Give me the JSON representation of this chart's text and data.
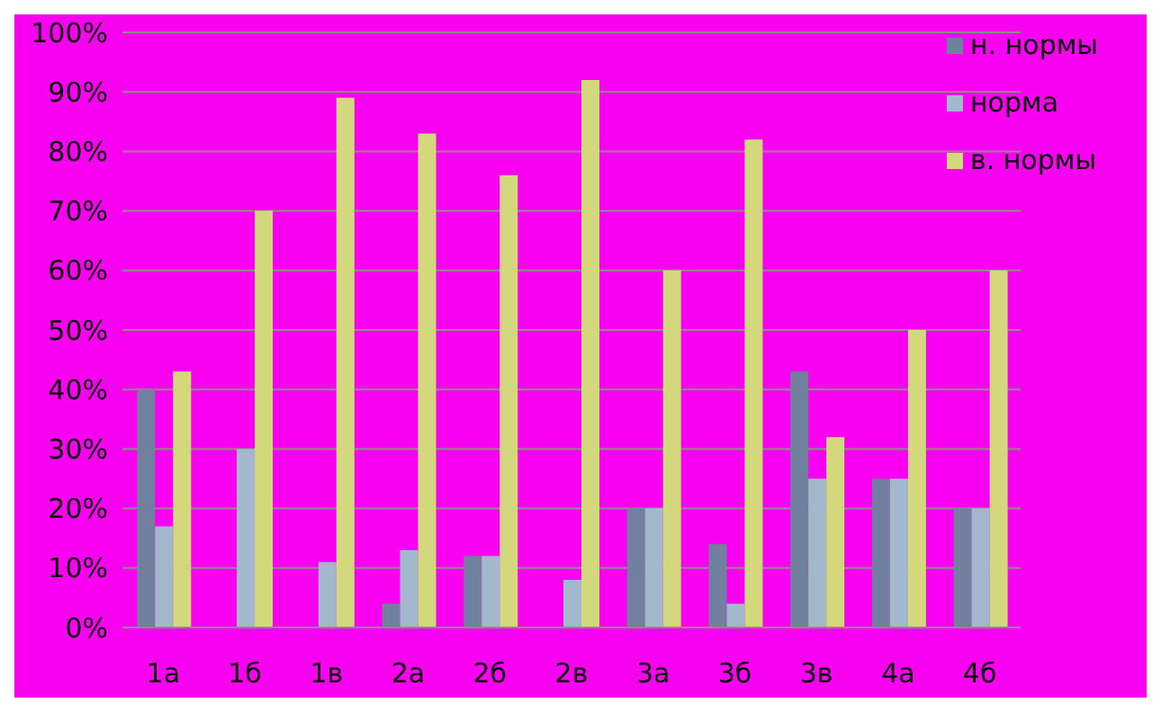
{
  "chart_data": {
    "type": "bar",
    "categories": [
      "1а",
      "1б",
      "1в",
      "2а",
      "2б",
      "2в",
      "3а",
      "3б",
      "3в",
      "4а",
      "4б"
    ],
    "series": [
      {
        "name": "н. нормы",
        "color": "#7280a0",
        "values": [
          40,
          0,
          0,
          4,
          12,
          0,
          20,
          14,
          43,
          25,
          20
        ]
      },
      {
        "name": "норма",
        "color": "#a3b8cc",
        "values": [
          17,
          30,
          11,
          13,
          12,
          8,
          20,
          4,
          25,
          25,
          20
        ]
      },
      {
        "name": "в. нормы",
        "color": "#d4d87c",
        "values": [
          43,
          70,
          89,
          83,
          76,
          92,
          60,
          82,
          32,
          50,
          60
        ]
      }
    ],
    "ylim": [
      0,
      100
    ],
    "yticks": [
      {
        "value": 0,
        "label": "0%"
      },
      {
        "value": 10,
        "label": "10%"
      },
      {
        "value": 20,
        "label": "20%"
      },
      {
        "value": 30,
        "label": "30%"
      },
      {
        "value": 40,
        "label": "40%"
      },
      {
        "value": 50,
        "label": "50%"
      },
      {
        "value": 60,
        "label": "60%"
      },
      {
        "value": 70,
        "label": "70%"
      },
      {
        "value": 80,
        "label": "80%"
      },
      {
        "value": 90,
        "label": "90%"
      },
      {
        "value": 100,
        "label": "100%"
      }
    ],
    "grid": "y",
    "legend": "top right"
  }
}
